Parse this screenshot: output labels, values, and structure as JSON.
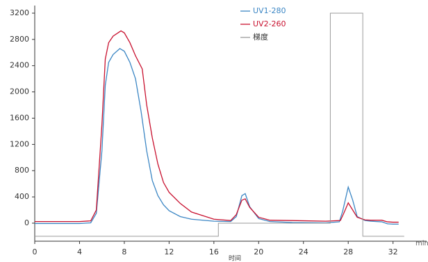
{
  "chart_data": {
    "type": "line",
    "x_label": "时间",
    "x_unit": "min",
    "xlim": [
      0,
      35
    ],
    "xticks": [
      0,
      4,
      8,
      12,
      16,
      20,
      24,
      28,
      32
    ],
    "ylim": [
      -275,
      3316
    ],
    "yticks": [
      0,
      400,
      800,
      1200,
      1600,
      2000,
      2400,
      2800,
      3200
    ],
    "series": [
      {
        "name": "UV1-280",
        "color": "#3b86c4",
        "x": [
          0,
          4,
          5,
          5.5,
          6,
          6.3,
          6.6,
          7,
          7.6,
          8,
          8.5,
          9,
          9.5,
          10,
          10.5,
          11,
          11.5,
          12,
          13,
          14,
          16,
          17.5,
          18,
          18.5,
          18.8,
          19.2,
          20,
          21,
          23,
          26,
          27.2,
          27.5,
          28,
          28.4,
          28.8,
          29.5,
          30,
          31,
          31.5,
          32,
          32.5
        ],
        "values": [
          -5,
          -5,
          5,
          150,
          1100,
          2100,
          2450,
          2570,
          2660,
          2620,
          2450,
          2200,
          1700,
          1100,
          650,
          420,
          280,
          190,
          100,
          60,
          30,
          25,
          100,
          420,
          450,
          250,
          70,
          25,
          10,
          5,
          20,
          180,
          550,
          350,
          100,
          40,
          30,
          20,
          -10,
          -15,
          -15
        ]
      },
      {
        "name": "UV2-260",
        "color": "#c8102e",
        "x": [
          0,
          4,
          5,
          5.5,
          6,
          6.3,
          6.6,
          7,
          7.7,
          8,
          8.5,
          9,
          9.6,
          10,
          10.5,
          11,
          11.5,
          12,
          13,
          14,
          16,
          17.5,
          18,
          18.5,
          18.8,
          19.2,
          20,
          21,
          23,
          26,
          27.3,
          27.6,
          28,
          28.4,
          28.8,
          29.5,
          30,
          31,
          31.5,
          32,
          32.5
        ],
        "values": [
          25,
          25,
          35,
          200,
          1500,
          2500,
          2750,
          2850,
          2930,
          2900,
          2750,
          2550,
          2350,
          1800,
          1300,
          900,
          620,
          470,
          300,
          170,
          60,
          40,
          130,
          350,
          370,
          240,
          90,
          45,
          40,
          30,
          40,
          150,
          310,
          200,
          90,
          50,
          45,
          45,
          20,
          15,
          15
        ]
      },
      {
        "name": "梯度",
        "color": "#9a9a9a",
        "x": [
          0,
          16.4,
          16.4,
          26.4,
          26.4,
          29.3,
          29.3,
          33
        ],
        "values": [
          -200,
          -200,
          0,
          0,
          3200,
          3200,
          -200,
          -200
        ]
      }
    ]
  }
}
